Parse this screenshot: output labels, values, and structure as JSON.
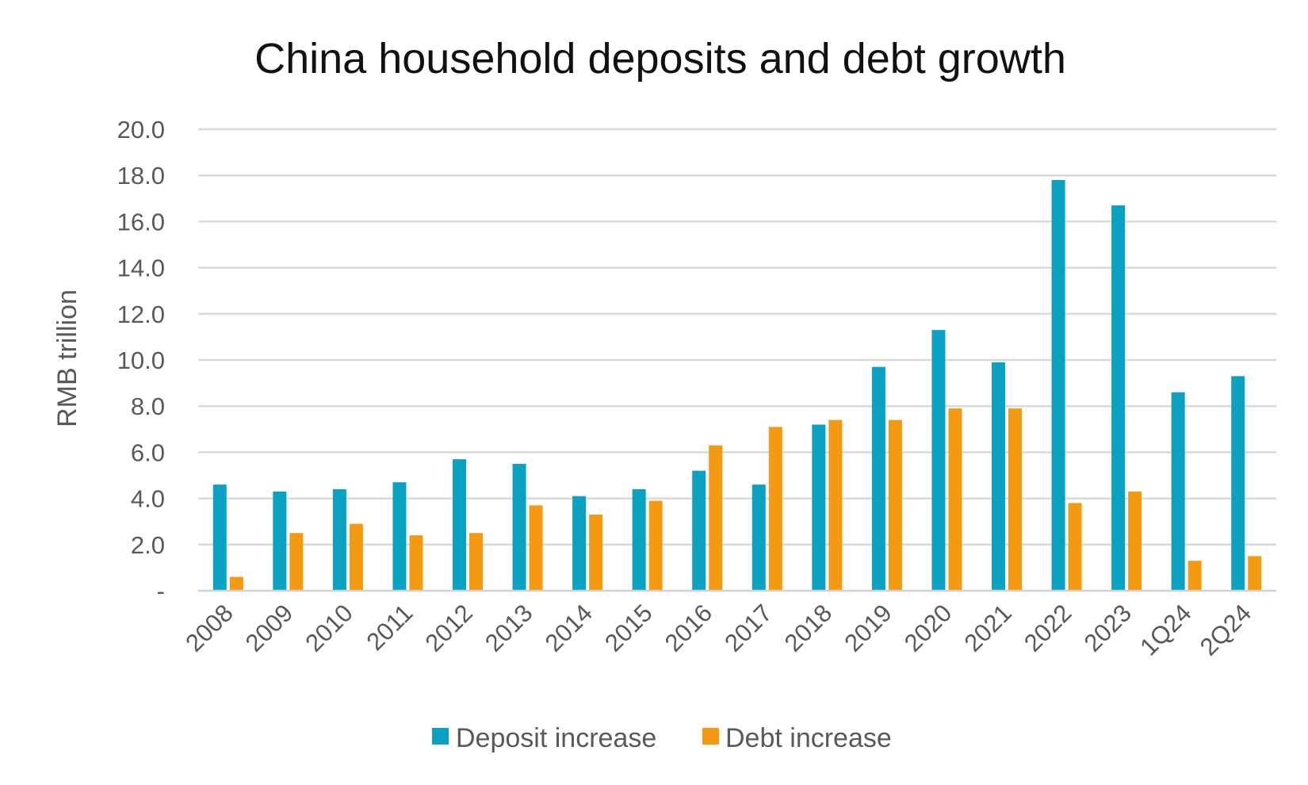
{
  "chart_data": {
    "type": "bar",
    "title": "China household deposits and debt growth",
    "ylabel": "RMB trillion",
    "xlabel": "",
    "ylim": [
      0,
      20
    ],
    "yticks": [
      "-",
      "2.0",
      "4.0",
      "6.0",
      "8.0",
      "10.0",
      "12.0",
      "14.0",
      "16.0",
      "18.0",
      "20.0"
    ],
    "categories": [
      "2008",
      "2009",
      "2010",
      "2011",
      "2012",
      "2013",
      "2014",
      "2015",
      "2016",
      "2017",
      "2018",
      "2019",
      "2020",
      "2021",
      "2022",
      "2023",
      "1Q24",
      "2Q24"
    ],
    "series": [
      {
        "name": "Deposit increase",
        "color": "#0aa2c0",
        "values": [
          4.6,
          4.3,
          4.4,
          4.7,
          5.7,
          5.5,
          4.1,
          4.4,
          5.2,
          4.6,
          7.2,
          9.7,
          11.3,
          9.9,
          17.8,
          16.7,
          8.6,
          9.3
        ]
      },
      {
        "name": "Debt increase",
        "color": "#f49a12",
        "values": [
          0.6,
          2.5,
          2.9,
          2.4,
          2.5,
          3.7,
          3.3,
          3.9,
          6.3,
          7.1,
          7.4,
          7.4,
          7.9,
          7.9,
          3.8,
          4.3,
          1.3,
          1.5
        ]
      }
    ],
    "grid": true,
    "legend": "bottom-center"
  }
}
